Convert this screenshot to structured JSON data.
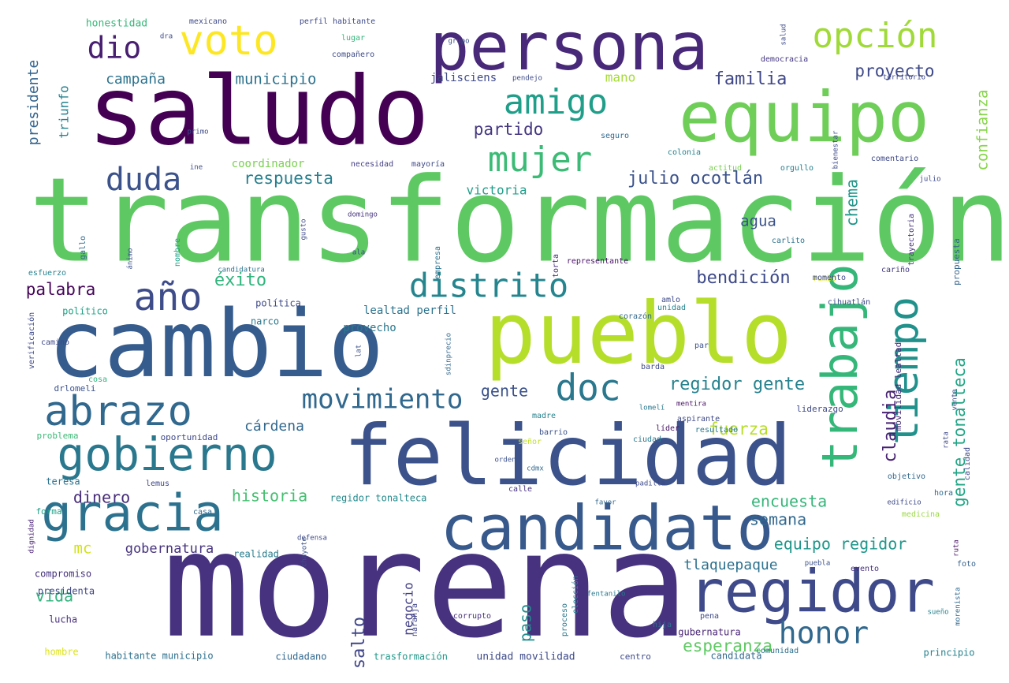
{
  "words": [
    {
      "text": "morena",
      "color": "#46327e"
    },
    {
      "text": "transformación",
      "color": "#5ec962"
    },
    {
      "text": "saludo",
      "color": "#440154"
    },
    {
      "text": "cambio",
      "color": "#365c8d"
    },
    {
      "text": "pueblo",
      "color": "#b5de2b"
    },
    {
      "text": "felicidad",
      "color": "#3b528b"
    },
    {
      "text": "equipo",
      "color": "#6ece58"
    },
    {
      "text": "persona",
      "color": "#482878"
    },
    {
      "text": "candidato",
      "color": "#38598c"
    },
    {
      "text": "regidor",
      "color": "#3e4a89"
    },
    {
      "text": "gobierno",
      "color": "#2a788e"
    },
    {
      "text": "abrazo",
      "color": "#31688e"
    },
    {
      "text": "gracia",
      "color": "#2c728e"
    },
    {
      "text": "tiempo",
      "color": "#21918c"
    },
    {
      "text": "trabajo",
      "color": "#35b779"
    },
    {
      "text": "voto",
      "color": "#fde725"
    },
    {
      "text": "opción",
      "color": "#a0da39"
    },
    {
      "text": "amigo",
      "color": "#1f9e89"
    },
    {
      "text": "mujer",
      "color": "#3bbb75"
    },
    {
      "text": "distrito",
      "color": "#25858e"
    },
    {
      "text": "doc",
      "color": "#2a788e"
    },
    {
      "text": "año",
      "color": "#3e4c8a"
    },
    {
      "text": "duda",
      "color": "#3b528b"
    },
    {
      "text": "honor",
      "color": "#31688e"
    },
    {
      "text": "movimiento",
      "color": "#31688e"
    },
    {
      "text": "dio",
      "color": "#481f70"
    },
    {
      "text": "regidor gente",
      "color": "#26828e"
    },
    {
      "text": "julio ocotlán",
      "color": "#3b528b"
    },
    {
      "text": "gente tonalteca",
      "color": "#21a685"
    },
    {
      "text": "municipio",
      "color": "#2c728e"
    },
    {
      "text": "familia",
      "color": "#3f4788"
    },
    {
      "text": "proyecto",
      "color": "#3e4989"
    },
    {
      "text": "partido",
      "color": "#453781"
    },
    {
      "text": "campaña",
      "color": "#2c738e"
    },
    {
      "text": "confianza",
      "color": "#86d549"
    },
    {
      "text": "presidente",
      "color": "#33638d"
    },
    {
      "text": "triunfo",
      "color": "#26828e"
    },
    {
      "text": "respuesta",
      "color": "#277f8e"
    },
    {
      "text": "claudia",
      "color": "#482173"
    },
    {
      "text": "chema",
      "color": "#1f968b"
    },
    {
      "text": "victoria",
      "color": "#1f9e89"
    },
    {
      "text": "bendición",
      "color": "#3e4a89"
    },
    {
      "text": "éxito",
      "color": "#2fb47c"
    },
    {
      "text": "palabra",
      "color": "#450559"
    },
    {
      "text": "agua",
      "color": "#3b528b"
    },
    {
      "text": "gente",
      "color": "#3b528b"
    },
    {
      "text": "cárdena",
      "color": "#31688e"
    },
    {
      "text": "fuerza",
      "color": "#b8de29"
    },
    {
      "text": "encuesta",
      "color": "#34b679"
    },
    {
      "text": "historia",
      "color": "#44bf70"
    },
    {
      "text": "dinero",
      "color": "#472c7a"
    },
    {
      "text": "semana",
      "color": "#31688e"
    },
    {
      "text": "equipo regidor",
      "color": "#1f978b"
    },
    {
      "text": "tlaquepaque",
      "color": "#2c718e"
    },
    {
      "text": "esperanza",
      "color": "#5ec962"
    },
    {
      "text": "vida",
      "color": "#2fb47c"
    },
    {
      "text": "salto",
      "color": "#404688"
    },
    {
      "text": "paso",
      "color": "#228c8d"
    },
    {
      "text": "negocio",
      "color": "#424086"
    },
    {
      "text": "gobernatura",
      "color": "#46337f"
    },
    {
      "text": "mano",
      "color": "#a5db36"
    },
    {
      "text": "mc",
      "color": "#d2e21b"
    },
    {
      "text": "jalisciens",
      "color": "#3e4a89"
    },
    {
      "text": "coordinador",
      "color": "#7ad151"
    },
    {
      "text": "honestidad",
      "color": "#35b779"
    },
    {
      "text": "lealtad perfil",
      "color": "#2c738e"
    },
    {
      "text": "provecho",
      "color": "#2a788e"
    },
    {
      "text": "unidad movilidad",
      "color": "#3e4a89"
    },
    {
      "text": "regidor tonalteca",
      "color": "#238a8d"
    },
    {
      "text": "habitante municipio",
      "color": "#2d708e"
    },
    {
      "text": "trasformación",
      "color": "#1f998a"
    },
    {
      "text": "ciudadano",
      "color": "#31688e"
    },
    {
      "text": "gubernatura",
      "color": "#482475"
    },
    {
      "text": "candidata",
      "color": "#31688e"
    },
    {
      "text": "principio",
      "color": "#26828e"
    },
    {
      "text": "política",
      "color": "#3e4a89"
    },
    {
      "text": "narco",
      "color": "#2a788e"
    },
    {
      "text": "político",
      "color": "#20a386"
    },
    {
      "text": "presidenta",
      "color": "#3f4788"
    },
    {
      "text": "compromiso",
      "color": "#46327e"
    },
    {
      "text": "realidad",
      "color": "#287d8e"
    },
    {
      "text": "lucha",
      "color": "#472f7d"
    },
    {
      "text": "hombre",
      "color": "#dde318"
    },
    {
      "text": "problema",
      "color": "#3aba76"
    },
    {
      "text": "oportunidad",
      "color": "#3e4989"
    },
    {
      "text": "necesidad",
      "color": "#433e85"
    },
    {
      "text": "mayoría",
      "color": "#3e4a89"
    },
    {
      "text": "orgullo",
      "color": "#277f8e"
    },
    {
      "text": "comentario",
      "color": "#3e4989"
    },
    {
      "text": "actitud",
      "color": "#7ad151"
    },
    {
      "text": "colonia",
      "color": "#26828e"
    },
    {
      "text": "carlito",
      "color": "#2c738e"
    },
    {
      "text": "trayectoria",
      "color": "#46337f"
    },
    {
      "text": "rumbo",
      "color": "#d8e219"
    },
    {
      "text": "cariño",
      "color": "#443983"
    },
    {
      "text": "propuesta",
      "color": "#33638d"
    },
    {
      "text": "movilidad lealtad",
      "color": "#472c7a"
    },
    {
      "text": "liderazgo",
      "color": "#3e4a89"
    },
    {
      "text": "resultado",
      "color": "#2a788e"
    },
    {
      "text": "aspirante",
      "color": "#3e4989"
    },
    {
      "text": "mentira",
      "color": "#471063"
    },
    {
      "text": "ciudad",
      "color": "#2a788e"
    },
    {
      "text": "líder",
      "color": "#471365"
    },
    {
      "text": "madre",
      "color": "#26828e"
    },
    {
      "text": "barrio",
      "color": "#3b528b"
    },
    {
      "text": "señor",
      "color": "#c0df25"
    },
    {
      "text": "orden",
      "color": "#3b528b"
    },
    {
      "text": "calle",
      "color": "#46307e"
    },
    {
      "text": "cdmx",
      "color": "#31688e"
    },
    {
      "text": "teresa",
      "color": "#2c728e"
    },
    {
      "text": "lemus",
      "color": "#3f4788"
    },
    {
      "text": "forma",
      "color": "#1fa187"
    },
    {
      "text": "casa",
      "color": "#31688e"
    },
    {
      "text": "dignidad",
      "color": "#482173"
    },
    {
      "text": "defensa",
      "color": "#3e4a89"
    },
    {
      "text": "chayote",
      "color": "#3b528b"
    },
    {
      "text": "naranja",
      "color": "#404588"
    },
    {
      "text": "corrupto",
      "color": "#472f7d"
    },
    {
      "text": "proceso",
      "color": "#2a788e"
    },
    {
      "text": "elección",
      "color": "#2a788e"
    },
    {
      "text": "fentanilo",
      "color": "#2a788e"
    },
    {
      "text": "hija",
      "color": "#2c728e"
    },
    {
      "text": "pena",
      "color": "#3e4a89"
    },
    {
      "text": "comunidad",
      "color": "#2d708e"
    },
    {
      "text": "sueño",
      "color": "#26828e"
    },
    {
      "text": "morenista",
      "color": "#31688e"
    },
    {
      "text": "evento",
      "color": "#46307e"
    },
    {
      "text": "puebla",
      "color": "#3b528b"
    },
    {
      "text": "foto",
      "color": "#34618d"
    },
    {
      "text": "ruta",
      "color": "#471063"
    },
    {
      "text": "padilla",
      "color": "#3e4a89"
    },
    {
      "text": "favor",
      "color": "#31688e"
    },
    {
      "text": "hora",
      "color": "#31688e"
    },
    {
      "text": "edificio",
      "color": "#3e4a89"
    },
    {
      "text": "medicina",
      "color": "#98d83e"
    },
    {
      "text": "objetivo",
      "color": "#31688e"
    },
    {
      "text": "calidad",
      "color": "#3e4989"
    },
    {
      "text": "venta",
      "color": "#3e4a89"
    },
    {
      "text": "barda",
      "color": "#3e4a89"
    },
    {
      "text": "lomelí",
      "color": "#2a788e"
    },
    {
      "text": "par",
      "color": "#3b528b"
    },
    {
      "text": "drlomeli",
      "color": "#3b528b"
    },
    {
      "text": "cosa",
      "color": "#2fb47c"
    },
    {
      "text": "verificación",
      "color": "#3e4989"
    },
    {
      "text": "camino",
      "color": "#3e4989"
    },
    {
      "text": "esfuerzo",
      "color": "#26828e"
    },
    {
      "text": "gallo",
      "color": "#31688e"
    },
    {
      "text": "nombre",
      "color": "#1fa187"
    },
    {
      "text": "ánimo",
      "color": "#3b528b"
    },
    {
      "text": "domingo",
      "color": "#46337f"
    },
    {
      "text": "gusto",
      "color": "#3e4a89"
    },
    {
      "text": "candidatura",
      "color": "#2c738e"
    },
    {
      "text": "torta",
      "color": "#46307e"
    },
    {
      "text": "representante",
      "color": "#471164"
    },
    {
      "text": "momento",
      "color": "#3e4989"
    },
    {
      "text": "amlo",
      "color": "#3e4a89"
    },
    {
      "text": "unidad",
      "color": "#26828e"
    },
    {
      "text": "corazón",
      "color": "#31688e"
    },
    {
      "text": "cihuatlán",
      "color": "#3e4a89"
    },
    {
      "text": "empresa",
      "color": "#2c728e"
    },
    {
      "text": "lat",
      "color": "#3b528b"
    },
    {
      "text": "sdinprecio",
      "color": "#31688e"
    },
    {
      "text": "ala",
      "color": "#3e4a89"
    },
    {
      "text": "lugar",
      "color": "#34b679"
    },
    {
      "text": "compañero",
      "color": "#3e4a89"
    },
    {
      "text": "grupo",
      "color": "#3b528b"
    },
    {
      "text": "democracia",
      "color": "#453781"
    },
    {
      "text": "territorio",
      "color": "#3e4989"
    },
    {
      "text": "bienestar",
      "color": "#3e4a89"
    },
    {
      "text": "seguro",
      "color": "#31688e"
    },
    {
      "text": "primo",
      "color": "#3e4a89"
    },
    {
      "text": "dra",
      "color": "#3e4a89"
    },
    {
      "text": "mexicano",
      "color": "#3e4a89"
    },
    {
      "text": "perfil habitante",
      "color": "#3e4a89"
    },
    {
      "text": "pendejo",
      "color": "#3e4a89"
    },
    {
      "text": "ine",
      "color": "#3e4a89"
    },
    {
      "text": "salud",
      "color": "#3e4a89"
    },
    {
      "text": "julio",
      "color": "#3e4a89"
    },
    {
      "text": "centro",
      "color": "#3e4a89"
    },
    {
      "text": "rata",
      "color": "#3e4a89"
    }
  ]
}
